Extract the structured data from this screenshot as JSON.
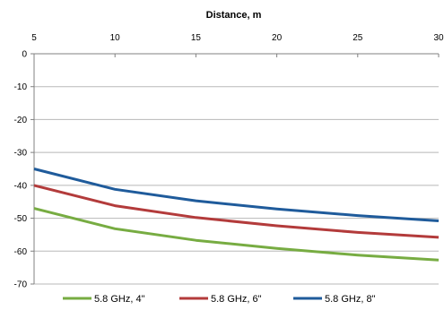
{
  "chart_data": {
    "type": "line",
    "title": "",
    "xlabel": "Distance, m",
    "ylabel": "",
    "x_axis_position": "top",
    "x": [
      5,
      10,
      15,
      20,
      25,
      30
    ],
    "xlim": [
      5,
      30
    ],
    "ylim": [
      -70,
      0
    ],
    "x_ticks": [
      "5",
      "10",
      "15",
      "20",
      "25",
      "30"
    ],
    "y_ticks": [
      "0",
      "-10",
      "-20",
      "-30",
      "-40",
      "-50",
      "-60",
      "-70"
    ],
    "grid": "horizontal",
    "legend_position": "bottom",
    "series": [
      {
        "name": "5.8 GHz, 4\"",
        "color": "#77ac42",
        "values": [
          -47,
          -53.2,
          -56.7,
          -59.2,
          -61.2,
          -62.7
        ]
      },
      {
        "name": "5.8 GHz, 6\"",
        "color": "#b33b3b",
        "values": [
          -40,
          -46.2,
          -49.8,
          -52.3,
          -54.3,
          -55.8
        ]
      },
      {
        "name": "5.8 GHz, 8\"",
        "color": "#1f5b9b",
        "values": [
          -35,
          -41.2,
          -44.7,
          -47.2,
          -49.2,
          -50.8
        ]
      }
    ]
  }
}
